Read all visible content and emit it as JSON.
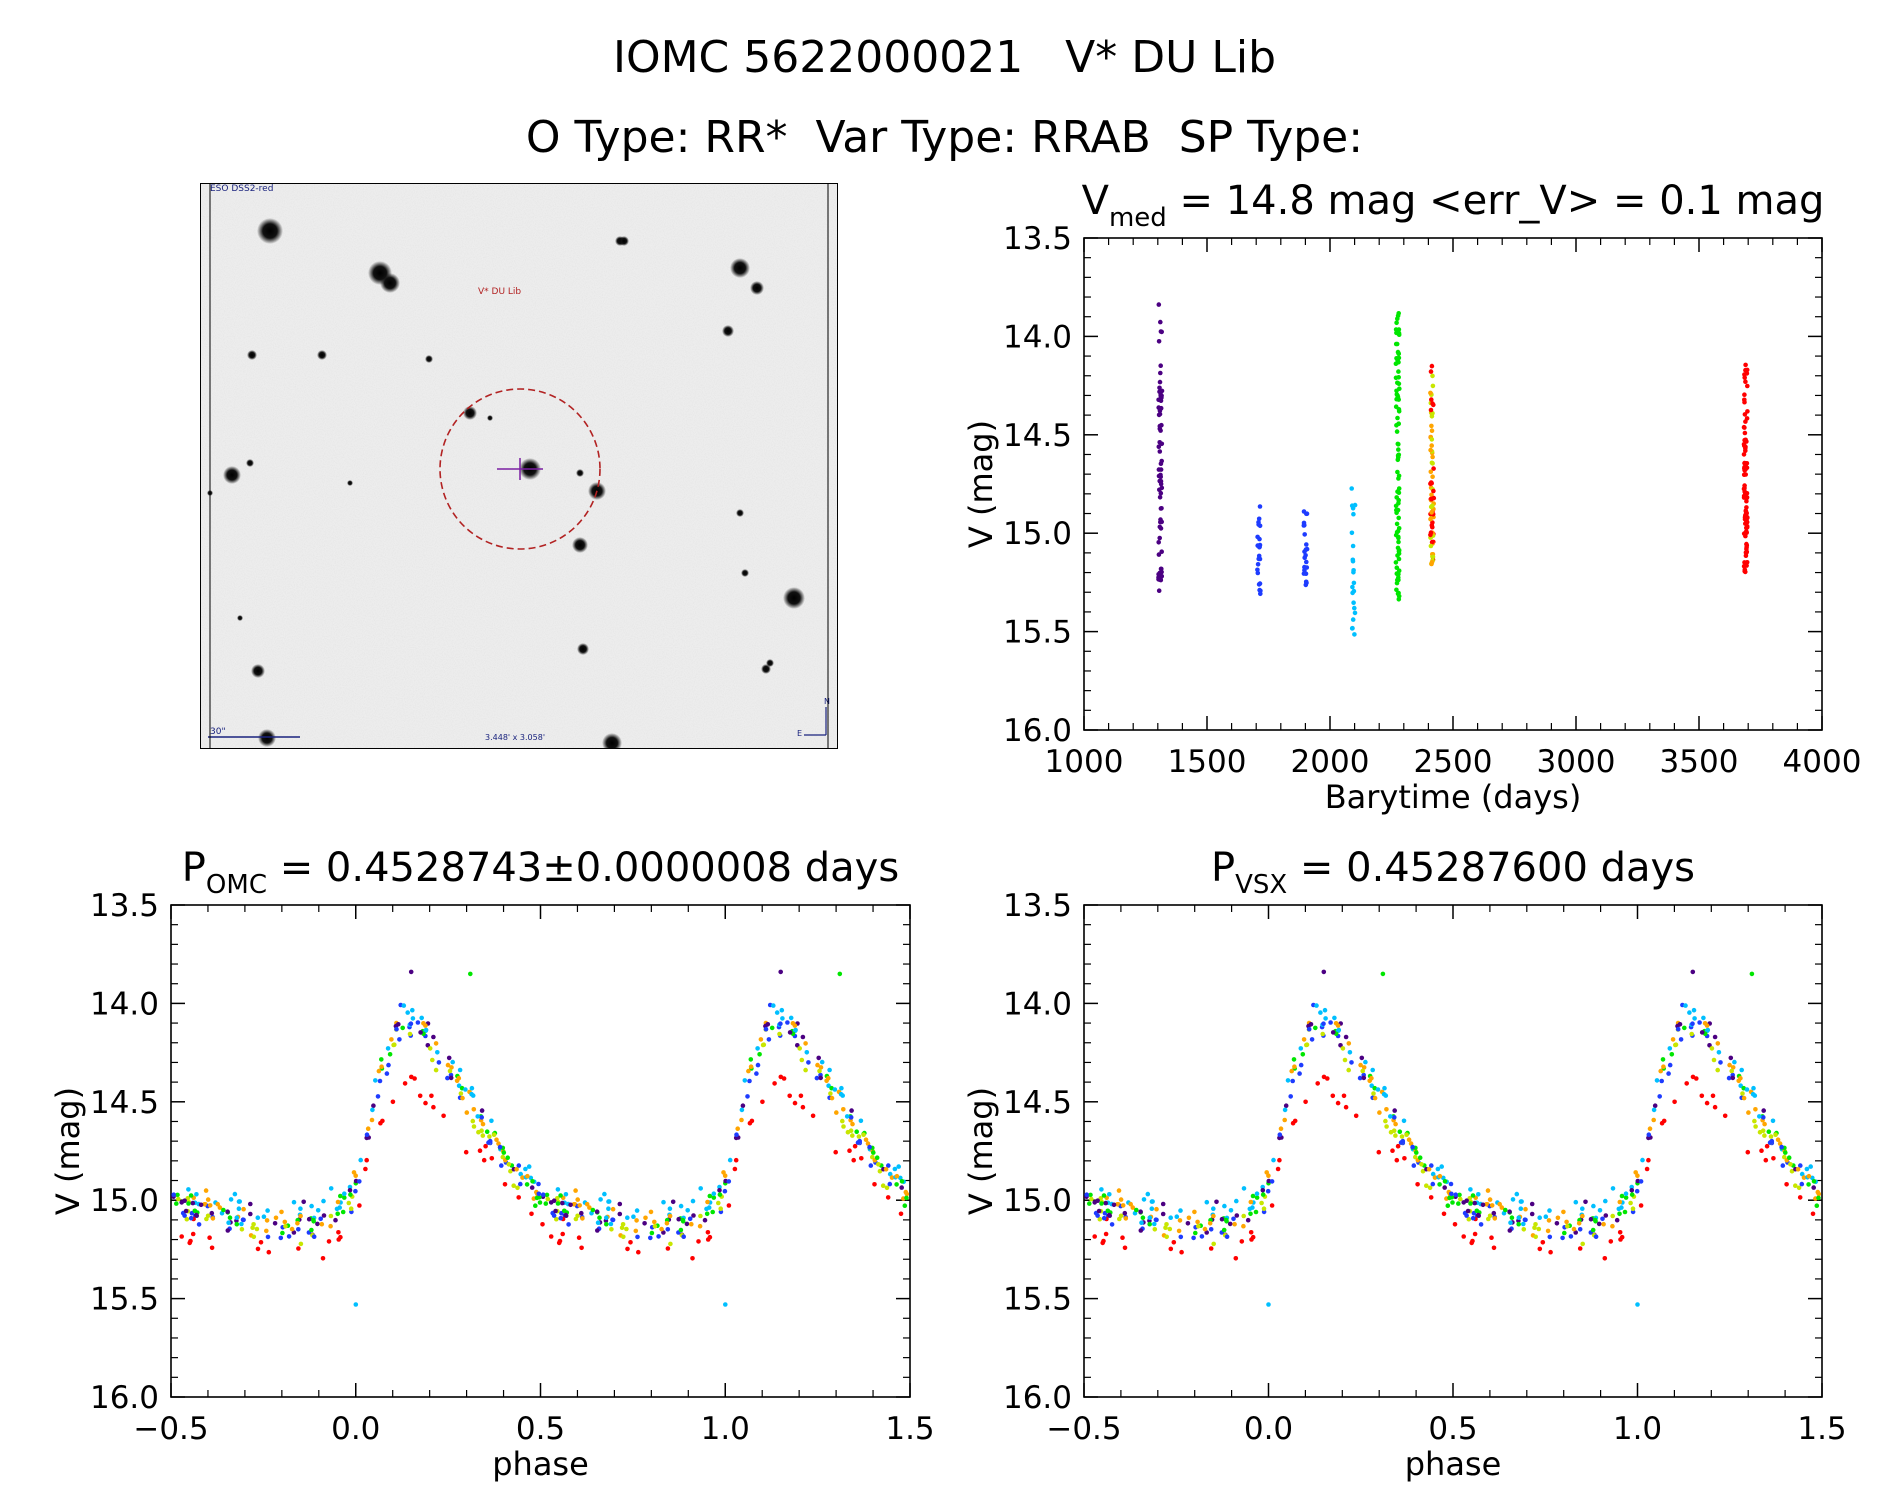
{
  "header": {
    "line1": "IOMC 5622000021   V* DU Lib",
    "line2": "O Type: RR*  Var Type: RRAB  SP Type:"
  },
  "finder": {
    "survey_label": "ESO DSS2-red",
    "target_label": "V* DU Lib",
    "scale_label": "30\"",
    "fov_label": "3.448' x 3.058'",
    "north_label": "N",
    "east_label": "E",
    "colors": {
      "circle": "#b22222",
      "label": "#b22222",
      "scale": "#1a237e"
    }
  },
  "colors": [
    "#4b0082",
    "#1e3cff",
    "#00bfff",
    "#00e600",
    "#c8e600",
    "#ffa500",
    "#ff0000"
  ],
  "chart_data": [
    {
      "id": "lightcurve",
      "type": "scatter",
      "title": "V",
      "title_sub": "med",
      "title_rest": " = 14.8 mag <err_V> = 0.1 mag",
      "xlabel": "Barytime (days)",
      "ylabel": "V (mag)",
      "xlim": [
        1000,
        4000
      ],
      "ylim": [
        16.0,
        13.5
      ],
      "y_inverted": true,
      "xticks": [
        1000,
        1500,
        2000,
        2500,
        3000,
        3500,
        4000
      ],
      "yticks": [
        13.5,
        14.0,
        14.5,
        15.0,
        15.5,
        16.0
      ],
      "season_groups": [
        {
          "x_center": 1310,
          "y_min": 13.83,
          "y_max": 15.33,
          "color_index": 0
        },
        {
          "x_center": 1710,
          "y_min": 14.83,
          "y_max": 15.31,
          "color_index": 1
        },
        {
          "x_center": 1900,
          "y_min": 14.88,
          "y_max": 15.28,
          "color_index": 1
        },
        {
          "x_center": 2095,
          "y_min": 14.76,
          "y_max": 15.53,
          "color_index": 2
        },
        {
          "x_center": 2275,
          "y_min": 13.84,
          "y_max": 15.35,
          "color_index": 3
        },
        {
          "x_center": 2415,
          "y_min": 14.1,
          "y_max": 15.16,
          "color_index": 5
        },
        {
          "x_center": 3690,
          "y_min": 14.14,
          "y_max": 15.22,
          "color_index": 6
        }
      ]
    },
    {
      "id": "phase_omc",
      "type": "scatter",
      "title": "P",
      "title_sub": "OMC",
      "title_rest": " = 0.4528743±0.0000008 days",
      "xlabel": "phase",
      "ylabel": "V (mag)",
      "xlim": [
        -0.5,
        1.5
      ],
      "ylim": [
        16.0,
        13.5
      ],
      "y_inverted": true,
      "xticks": [
        -0.5,
        0.0,
        0.5,
        1.0,
        1.5
      ],
      "yticks": [
        13.5,
        14.0,
        14.5,
        15.0,
        15.5,
        16.0
      ],
      "template_phase": [
        0.0,
        0.04,
        0.08,
        0.12,
        0.16,
        0.2,
        0.3,
        0.4,
        0.5,
        0.6,
        0.7,
        0.8,
        0.9,
        0.95,
        1.0
      ],
      "template_mag": [
        14.88,
        14.55,
        14.2,
        14.05,
        14.02,
        14.12,
        14.42,
        14.72,
        14.92,
        15.0,
        15.05,
        15.08,
        15.05,
        14.98,
        14.88
      ],
      "outliers": [
        {
          "phase": 0.15,
          "mag": 13.84,
          "color_index": 0
        },
        {
          "phase": 0.31,
          "mag": 13.85,
          "color_index": 3
        },
        {
          "phase": 0.0,
          "mag": 15.53,
          "color_index": 2
        }
      ]
    },
    {
      "id": "phase_vsx",
      "type": "scatter",
      "title": "P",
      "title_sub": "VSX",
      "title_rest": " = 0.45287600 days",
      "xlabel": "phase",
      "ylabel": "V (mag)",
      "xlim": [
        -0.5,
        1.5
      ],
      "ylim": [
        16.0,
        13.5
      ],
      "y_inverted": true,
      "xticks": [
        -0.5,
        0.0,
        0.5,
        1.0,
        1.5
      ],
      "yticks": [
        13.5,
        14.0,
        14.5,
        15.0,
        15.5,
        16.0
      ],
      "template_phase": [
        0.0,
        0.04,
        0.08,
        0.12,
        0.16,
        0.2,
        0.3,
        0.4,
        0.5,
        0.6,
        0.7,
        0.8,
        0.9,
        0.95,
        1.0
      ],
      "template_mag": [
        14.88,
        14.55,
        14.2,
        14.05,
        14.02,
        14.12,
        14.42,
        14.72,
        14.92,
        15.0,
        15.05,
        15.08,
        15.05,
        14.98,
        14.88
      ],
      "outliers": [
        {
          "phase": 0.15,
          "mag": 13.84,
          "color_index": 0
        },
        {
          "phase": 0.31,
          "mag": 13.85,
          "color_index": 3
        },
        {
          "phase": 0.0,
          "mag": 15.53,
          "color_index": 2
        }
      ]
    }
  ]
}
